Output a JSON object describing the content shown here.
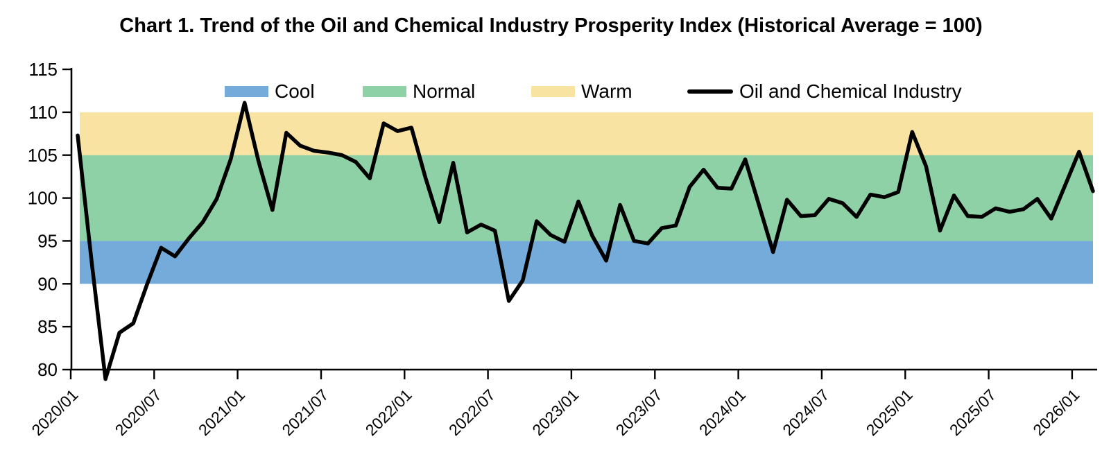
{
  "chart_data": {
    "type": "line",
    "title": "Chart 1. Trend of the Oil and Chemical Industry Prosperity Index (Historical Average = 100)",
    "xlabel": "",
    "ylabel": "",
    "ylim": [
      80,
      115
    ],
    "yticks": [
      80,
      85,
      90,
      95,
      100,
      105,
      110,
      115
    ],
    "grid": false,
    "legend_position": "top",
    "x_tick_step": 6,
    "x_tick_labels": [
      "2020/01",
      "2020/07",
      "2021/01",
      "2021/07",
      "2022/01",
      "2022/07",
      "2023/01",
      "2023/07",
      "2024/01",
      "2024/07",
      "2025/01",
      "2025/07",
      "2026/01"
    ],
    "x": [
      "2020/01",
      "2020/02",
      "2020/03",
      "2020/04",
      "2020/05",
      "2020/06",
      "2020/07",
      "2020/08",
      "2020/09",
      "2020/10",
      "2020/11",
      "2020/12",
      "2021/01",
      "2021/02",
      "2021/03",
      "2021/04",
      "2021/05",
      "2021/06",
      "2021/07",
      "2021/08",
      "2021/09",
      "2021/10",
      "2021/11",
      "2021/12",
      "2022/01",
      "2022/02",
      "2022/03",
      "2022/04",
      "2022/05",
      "2022/06",
      "2022/07",
      "2022/08",
      "2022/09",
      "2022/10",
      "2022/11",
      "2022/12",
      "2023/01",
      "2023/02",
      "2023/03",
      "2023/04",
      "2023/05",
      "2023/06",
      "2023/07",
      "2023/08",
      "2023/09",
      "2023/10",
      "2023/11",
      "2023/12",
      "2024/01",
      "2024/02",
      "2024/03",
      "2024/04",
      "2024/05",
      "2024/06",
      "2024/07",
      "2024/08",
      "2024/09",
      "2024/10",
      "2024/11",
      "2024/12",
      "2025/01",
      "2025/02",
      "2025/03",
      "2025/04",
      "2025/05",
      "2025/06",
      "2025/07",
      "2025/08",
      "2025/09",
      "2025/10",
      "2025/11",
      "2025/12",
      "2026/01",
      "2026/02"
    ],
    "bands": [
      {
        "name": "Cool",
        "from": 90,
        "to": 95,
        "color": "#74ABDB"
      },
      {
        "name": "Normal",
        "from": 95,
        "to": 105,
        "color": "#8ED1A6"
      },
      {
        "name": "Warm",
        "from": 105,
        "to": 110,
        "color": "#F9E3A2"
      }
    ],
    "series": [
      {
        "name": "Oil and Chemical Industry",
        "color": "#000000",
        "values": [
          107.3,
          92.6,
          78.9,
          84.3,
          85.4,
          90.0,
          94.2,
          93.2,
          95.3,
          97.2,
          99.9,
          104.5,
          111.1,
          104.3,
          98.6,
          107.6,
          106.1,
          105.5,
          105.3,
          105.0,
          104.2,
          102.3,
          108.7,
          107.8,
          108.2,
          102.4,
          97.2,
          104.1,
          96.0,
          96.9,
          96.2,
          88.0,
          90.4,
          97.3,
          95.7,
          94.9,
          99.6,
          95.6,
          92.7,
          99.2,
          95.0,
          94.7,
          96.5,
          96.8,
          101.3,
          103.3,
          101.2,
          101.1,
          104.5,
          99.1,
          93.7,
          99.8,
          97.9,
          98.0,
          99.9,
          99.4,
          97.8,
          100.4,
          100.1,
          100.7,
          107.7,
          103.7,
          96.2,
          100.3,
          97.9,
          97.8,
          98.8,
          98.4,
          98.7,
          99.9,
          97.6,
          101.5,
          105.4,
          100.8
        ]
      }
    ]
  },
  "legend": {
    "items": [
      {
        "label": "Cool",
        "color": "#74ABDB",
        "type": "band"
      },
      {
        "label": "Normal",
        "color": "#8ED1A6",
        "type": "band"
      },
      {
        "label": "Warm",
        "color": "#F9E3A2",
        "type": "band"
      },
      {
        "label": "Oil and Chemical Industry",
        "color": "#000000",
        "type": "line"
      }
    ]
  },
  "colors": {
    "axis": "#000000",
    "text": "#000000",
    "background": "#FFFFFF"
  }
}
